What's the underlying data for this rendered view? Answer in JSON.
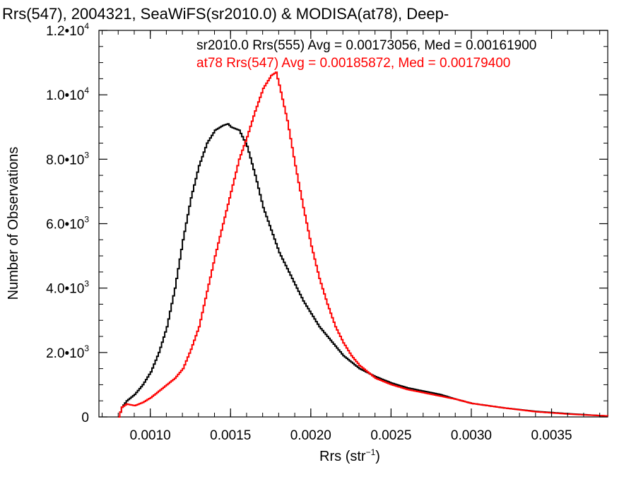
{
  "chart_data": {
    "type": "line",
    "title": "Rrs(547), 2004321, SeaWiFS(sr2010.0) & MODISA(at78), Deep-",
    "xlabel": "Rrs (str",
    "xlabel_sup": "−1",
    "xlabel_end": ")",
    "ylabel": "Number of Observations",
    "xlim": [
      0.00068,
      0.00385
    ],
    "ylim": [
      0,
      12000
    ],
    "x_ticks": [
      0.001,
      0.0015,
      0.002,
      0.0025,
      0.003,
      0.0035
    ],
    "x_tick_labels": [
      "0.0010",
      "0.0015",
      "0.0020",
      "0.0025",
      "0.0030",
      "0.0035"
    ],
    "y_ticks": [
      0,
      2000,
      4000,
      6000,
      8000,
      10000,
      12000
    ],
    "y_tick_labels": [
      {
        "mantissa": "0",
        "exp": ""
      },
      {
        "mantissa": "2.0•10",
        "exp": "3"
      },
      {
        "mantissa": "4.0•10",
        "exp": "3"
      },
      {
        "mantissa": "6.0•10",
        "exp": "3"
      },
      {
        "mantissa": "8.0•10",
        "exp": "3"
      },
      {
        "mantissa": "1.0•10",
        "exp": "4"
      },
      {
        "mantissa": "1.2•10",
        "exp": "4"
      }
    ],
    "legend_placement": "top-right",
    "grid": false,
    "series": [
      {
        "name": "sr2010.0 Rrs(555) Avg = 0.00173056, Med = 0.00161900",
        "color": "#000000",
        "x": [
          0.0008,
          0.00082,
          0.00085,
          0.0009,
          0.00095,
          0.001,
          0.00105,
          0.0011,
          0.00115,
          0.0012,
          0.00125,
          0.0013,
          0.00135,
          0.0014,
          0.00145,
          0.00148,
          0.0015,
          0.00155,
          0.0016,
          0.00165,
          0.0017,
          0.00175,
          0.0018,
          0.00185,
          0.0019,
          0.00195,
          0.002,
          0.00205,
          0.0021,
          0.00215,
          0.0022,
          0.00225,
          0.0023,
          0.0024,
          0.0025,
          0.0026,
          0.0027,
          0.0028,
          0.0029,
          0.003,
          0.0032,
          0.0034,
          0.0036,
          0.0038,
          0.00385
        ],
        "y": [
          0,
          300,
          500,
          700,
          1000,
          1400,
          2000,
          2800,
          4000,
          5500,
          6800,
          7800,
          8500,
          8900,
          9050,
          9100,
          9000,
          8900,
          8400,
          7500,
          6500,
          5800,
          5100,
          4600,
          4100,
          3600,
          3200,
          2800,
          2500,
          2200,
          1900,
          1700,
          1500,
          1250,
          1050,
          900,
          800,
          700,
          550,
          420,
          280,
          170,
          100,
          40,
          30
        ]
      },
      {
        "name": "at78 Rrs(547) Avg = 0.00185872, Med = 0.00179400",
        "color": "#ff0000",
        "x": [
          0.0008,
          0.00082,
          0.00085,
          0.0009,
          0.00095,
          0.001,
          0.00105,
          0.0011,
          0.00115,
          0.0012,
          0.00125,
          0.0013,
          0.00135,
          0.0014,
          0.00145,
          0.0015,
          0.00155,
          0.0016,
          0.00165,
          0.0017,
          0.00175,
          0.00178,
          0.0018,
          0.00185,
          0.0019,
          0.00195,
          0.002,
          0.00205,
          0.0021,
          0.00215,
          0.0022,
          0.00225,
          0.0023,
          0.0024,
          0.0025,
          0.0026,
          0.0027,
          0.0028,
          0.0029,
          0.003,
          0.0032,
          0.0034,
          0.0036,
          0.0038,
          0.00385
        ],
        "y": [
          0,
          300,
          400,
          350,
          450,
          600,
          800,
          1000,
          1200,
          1500,
          2100,
          2800,
          3900,
          5000,
          6000,
          7000,
          8000,
          8700,
          9500,
          10200,
          10600,
          10700,
          10300,
          9200,
          7800,
          6500,
          5300,
          4300,
          3500,
          2800,
          2300,
          1900,
          1600,
          1200,
          1000,
          850,
          750,
          650,
          550,
          420,
          280,
          160,
          90,
          40,
          30
        ]
      }
    ]
  }
}
